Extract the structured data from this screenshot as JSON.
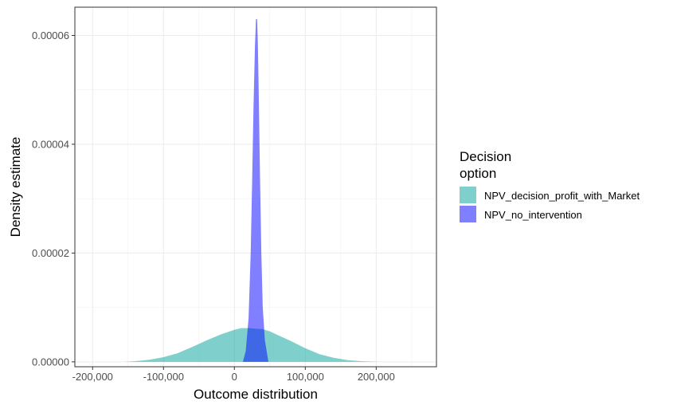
{
  "chart_data": {
    "type": "area",
    "xlabel": "Outcome distribution",
    "ylabel": "Density estimate",
    "xlim": [
      -225000,
      285000
    ],
    "ylim": [
      -9e-07,
      6.52e-05
    ],
    "x_ticks": [
      -200000,
      -100000,
      0,
      100000,
      200000
    ],
    "x_tick_labels": [
      "-200,000",
      "-100,000",
      "0",
      "100,000",
      "200,000"
    ],
    "y_ticks": [
      0,
      2e-05,
      4e-05,
      6e-05
    ],
    "y_tick_labels": [
      "0.00000",
      "0.00002",
      "0.00004",
      "0.00006"
    ],
    "grid": true,
    "legend": {
      "title_lines": [
        "Decision",
        "option"
      ],
      "position": "right"
    },
    "series": [
      {
        "name": "NPV_decision_profit_with_Market",
        "color": "#00A19A",
        "fill_opacity": 0.5,
        "x": [
          -155000,
          -140000,
          -120000,
          -100000,
          -80000,
          -60000,
          -40000,
          -20000,
          0,
          10000,
          20000,
          30000,
          40000,
          50000,
          60000,
          80000,
          100000,
          120000,
          140000,
          160000,
          180000,
          200000,
          207000
        ],
        "y": [
          0,
          1.2e-07,
          3.8e-07,
          8.5e-07,
          1.6e-06,
          2.7e-06,
          3.9e-06,
          5e-06,
          5.9e-06,
          6.2e-06,
          6.2e-06,
          6.1e-06,
          6e-06,
          5.6e-06,
          5e-06,
          3.8e-06,
          2.5e-06,
          1.4e-06,
          7.5e-07,
          3e-07,
          1e-07,
          2e-08,
          0
        ]
      },
      {
        "name": "NPV_no_intervention",
        "color": "#0000FF",
        "fill_opacity": 0.5,
        "x": [
          12000,
          16000,
          20000,
          23000,
          25000,
          27000,
          29000,
          30500,
          32000,
          33000,
          34000,
          36000,
          38000,
          40000,
          43000,
          48000
        ],
        "y": [
          0,
          2e-06,
          8e-06,
          2e-05,
          3.3e-05,
          4.7e-05,
          5.8e-05,
          6.3e-05,
          6.3e-05,
          5.9e-05,
          5.2e-05,
          3.5e-05,
          2e-05,
          1e-05,
          4e-06,
          0
        ]
      }
    ]
  }
}
